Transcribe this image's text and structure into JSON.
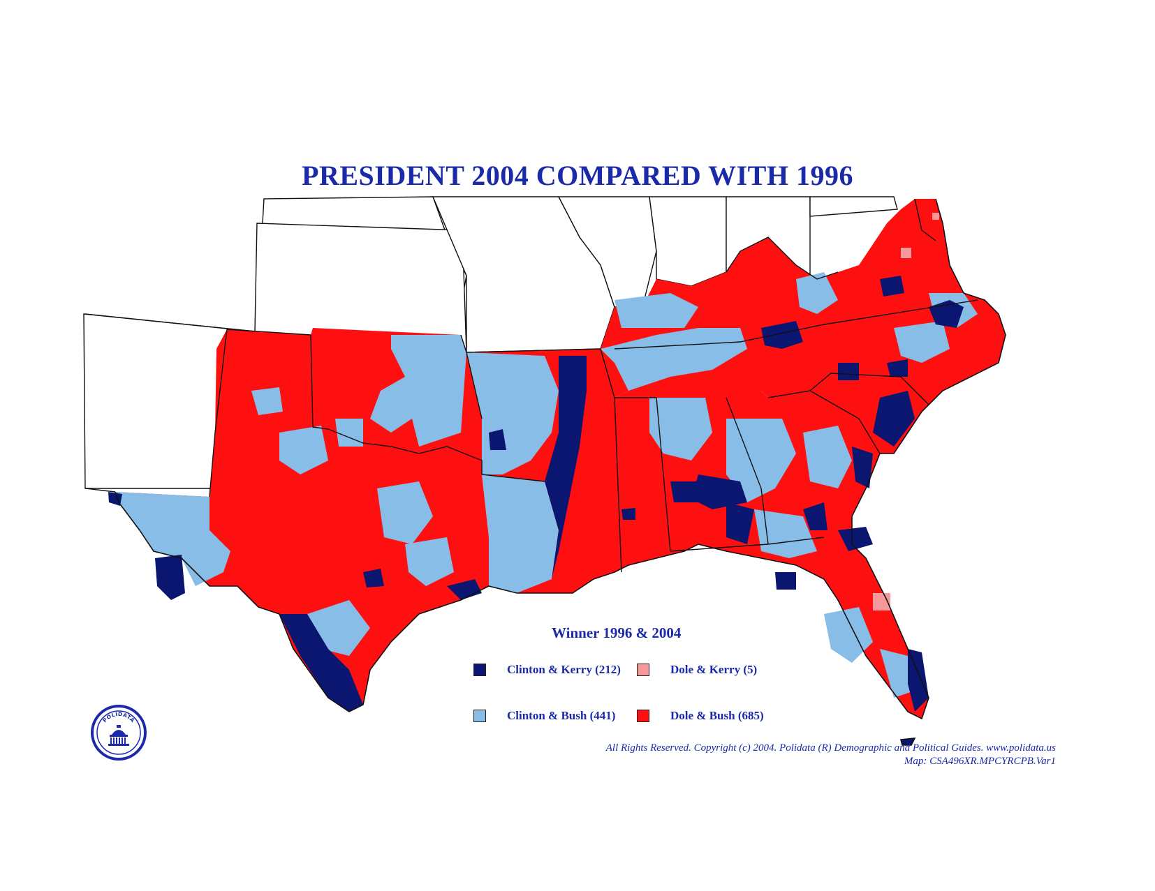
{
  "title": "PRESIDENT 2004 COMPARED WITH 1996",
  "legend": {
    "title": "Winner 1996 & 2004",
    "items": [
      {
        "label": "Clinton & Kerry (212)",
        "color": "#0b1670"
      },
      {
        "label": "Dole & Kerry (5)",
        "color": "#f4989a"
      },
      {
        "label": "Clinton & Bush (441)",
        "color": "#88bde8"
      },
      {
        "label": "Dole & Bush (685)",
        "color": "#ff1010"
      }
    ]
  },
  "copyright": {
    "line1": "All Rights Reserved. Copyright (c) 2004. Polidata (R) Demographic and Political Guides. www.polidata.us",
    "line2": "Map: CSA496XR.MPCYRCPB.Var1"
  },
  "logo": {
    "text": "POLIDATA"
  },
  "colors": {
    "dole_bush": "#ff1010",
    "clinton_bush": "#88bde8",
    "clinton_kerry": "#0b1670",
    "dole_kerry": "#f4989a",
    "border": "#111111"
  }
}
